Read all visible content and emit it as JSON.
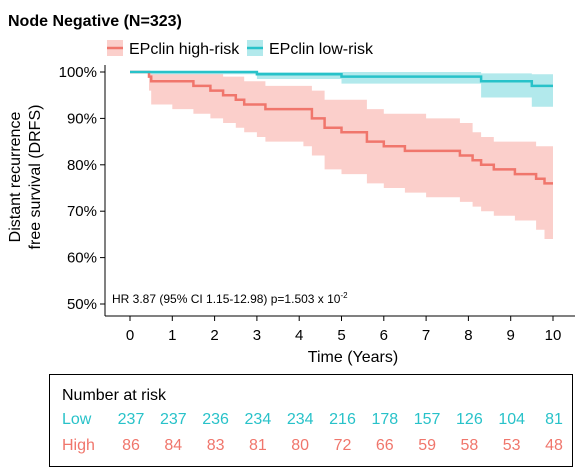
{
  "chart_data": {
    "type": "line",
    "subtype": "kaplan-meier",
    "title": "Node Negative (N=323)",
    "xlabel": "Time (Years)",
    "ylabel": "Distant recurrence free survival (DRFS)",
    "ylabel_lines": [
      "Distant recurrence",
      "free survival (DRFS)"
    ],
    "xlim": [
      0,
      10
    ],
    "ylim": [
      50,
      100
    ],
    "xticks": [
      0,
      1,
      2,
      3,
      4,
      5,
      6,
      7,
      8,
      9,
      10
    ],
    "yticks": [
      50,
      60,
      70,
      80,
      90,
      100
    ],
    "ytick_labels": [
      "50%",
      "60%",
      "70%",
      "80%",
      "90%",
      "100%"
    ],
    "grid": false,
    "legend_position": "top",
    "annotation": "HR 3.87 (95% CI 1.15-12.98) p=1.503 x 10",
    "annotation_exponent": "-2",
    "series": [
      {
        "name": "EPclin high-risk",
        "color": "#f0766c",
        "band_color": "#fbcfcb",
        "x": [
          0,
          0.45,
          0.5,
          1.0,
          1.5,
          1.9,
          2.2,
          2.5,
          2.7,
          3.0,
          3.2,
          4.1,
          4.3,
          4.6,
          5.0,
          5.6,
          6.0,
          6.5,
          7.0,
          7.8,
          8.1,
          8.3,
          8.6,
          9.1,
          9.6,
          9.8,
          10.0
        ],
        "y": [
          100,
          99,
          98,
          98,
          97,
          96,
          95,
          94,
          93,
          93,
          92,
          92,
          90,
          88,
          87,
          85,
          84,
          83,
          83,
          82,
          81,
          80,
          79,
          78,
          77,
          76,
          76
        ],
        "lower": [
          100,
          96,
          93,
          92,
          91,
          90,
          89,
          88,
          87,
          86,
          85,
          84,
          82,
          79,
          78,
          76,
          75,
          74,
          73,
          72,
          71,
          70,
          69,
          68,
          66,
          64,
          64
        ],
        "upper": [
          100,
          100,
          100,
          100,
          100,
          100,
          99,
          99,
          98,
          98,
          97,
          97,
          96,
          94,
          94,
          92,
          91,
          91,
          90,
          89,
          87,
          86,
          85,
          85,
          84,
          84,
          84
        ]
      },
      {
        "name": "EPclin low-risk",
        "color": "#28c2c9",
        "band_color": "#b2e9ec",
        "x": [
          0,
          0.5,
          3.0,
          5.0,
          8.3,
          9.5,
          10.0
        ],
        "y": [
          100,
          100,
          99.5,
          99,
          98,
          97,
          97
        ],
        "lower": [
          100,
          99.5,
          98.5,
          97.5,
          94.5,
          92.5,
          92.5
        ],
        "upper": [
          100,
          100,
          100,
          100,
          99.7,
          99.5,
          99.5
        ]
      }
    ]
  },
  "risk_table": {
    "title": "Number at risk",
    "rows": [
      {
        "label": "Low",
        "color": "#28c2c9",
        "values": [
          "237",
          "237",
          "236",
          "234",
          "234",
          "216",
          "178",
          "157",
          "126",
          "104",
          "81"
        ]
      },
      {
        "label": "High",
        "color": "#f0766c",
        "values": [
          "86",
          "84",
          "83",
          "81",
          "80",
          "72",
          "66",
          "59",
          "58",
          "53",
          "48"
        ]
      }
    ]
  }
}
